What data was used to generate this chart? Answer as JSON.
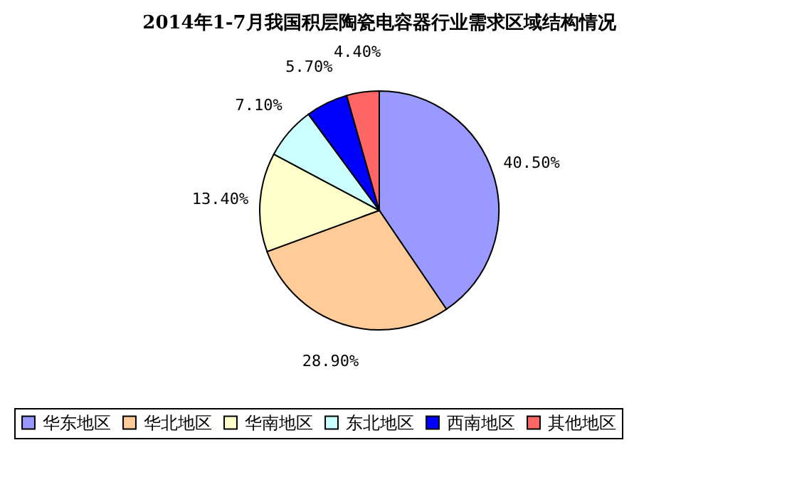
{
  "chart_data": {
    "type": "pie",
    "title": "2014年1-7月我国积层陶瓷电容器行业需求区域结构情况",
    "categories": [
      "华东地区",
      "华北地区",
      "华南地区",
      "东北地区",
      "西南地区",
      "其他地区"
    ],
    "values": [
      40.5,
      28.9,
      13.4,
      7.1,
      5.7,
      4.4
    ],
    "colors": [
      "#9999ff",
      "#ffcc99",
      "#ffffcc",
      "#ccffff",
      "#0000ff",
      "#ff6666"
    ],
    "value_labels": [
      "40.50%",
      "28.90%",
      "13.40%",
      "7.10%",
      "5.70%",
      "4.40%"
    ],
    "legend": "bottom"
  }
}
